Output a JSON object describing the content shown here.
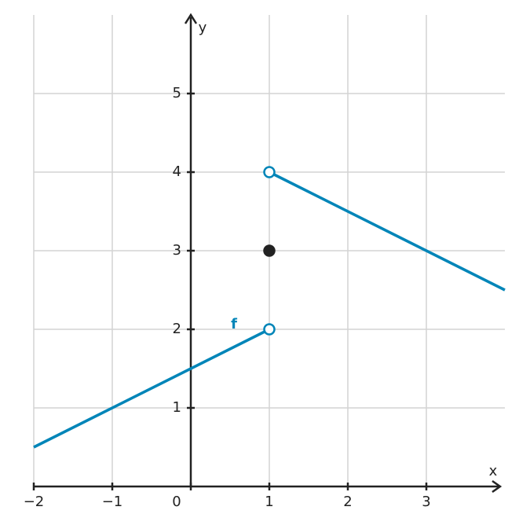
{
  "chart_data": {
    "type": "line",
    "x_label": "x",
    "y_label": "y",
    "xlim": [
      -2,
      4
    ],
    "ylim": [
      0,
      6
    ],
    "xticks": [
      {
        "value": -2,
        "label": "−2"
      },
      {
        "value": -1,
        "label": "−1"
      },
      0,
      1,
      2,
      3
    ],
    "yticks": [
      1,
      2,
      3,
      4,
      5
    ],
    "grid": true,
    "series": [
      {
        "name": "f",
        "color": "#0085b8",
        "x": [
          -2,
          1,
          1,
          1,
          4
        ],
        "values": [
          0.5,
          2,
          null,
          4,
          2.5
        ]
      }
    ],
    "points": [
      {
        "x": 1,
        "y": 2,
        "filled": false,
        "color": "#0085b8"
      },
      {
        "x": 1,
        "y": 4,
        "filled": false,
        "color": "#0085b8"
      },
      {
        "x": 1,
        "y": 3,
        "filled": true,
        "color": "#222222"
      }
    ]
  }
}
